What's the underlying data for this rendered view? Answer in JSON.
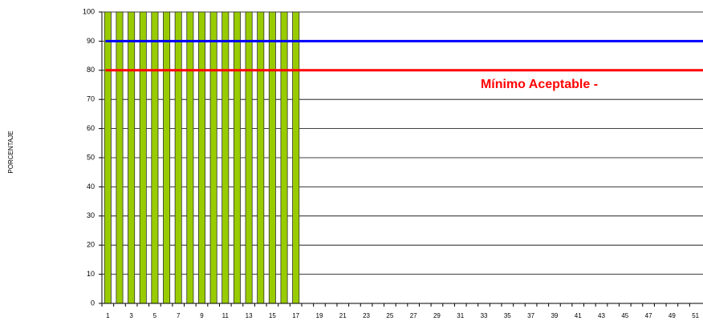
{
  "chart_data": {
    "type": "bar",
    "y_label": "PORCENTAJE",
    "categories": [
      1,
      null,
      3,
      null,
      5,
      null,
      7,
      null,
      9,
      null,
      11,
      null,
      13,
      null,
      15,
      null,
      17,
      null,
      19,
      null,
      21,
      null,
      23,
      null,
      25,
      null,
      27,
      null,
      29,
      null,
      31,
      null,
      33,
      null,
      35,
      null,
      37,
      null,
      39,
      null,
      41,
      null,
      43,
      null,
      45,
      null,
      47,
      null,
      49,
      null,
      51
    ],
    "values": [
      100,
      100,
      100,
      100,
      100,
      100,
      100,
      100,
      100,
      100,
      100,
      100,
      100,
      100,
      100,
      100,
      100,
      null,
      null,
      null,
      null,
      null,
      null,
      null,
      null,
      null,
      null,
      null,
      null,
      null,
      null,
      null,
      null,
      null,
      null,
      null,
      null,
      null,
      null,
      null,
      null,
      null,
      null,
      null,
      null,
      null,
      null,
      null,
      null,
      null,
      null
    ],
    "color": "#99cc00",
    "reference_lines": [
      {
        "value": 90,
        "color": "#0000ff"
      },
      {
        "value": 80,
        "color": "#ff0000",
        "label": "Mínimo Aceptable -"
      }
    ],
    "ylim": [
      0,
      100
    ],
    "yticks": [
      0,
      10,
      20,
      30,
      40,
      50,
      60,
      70,
      80,
      90,
      100
    ],
    "grid": true
  }
}
